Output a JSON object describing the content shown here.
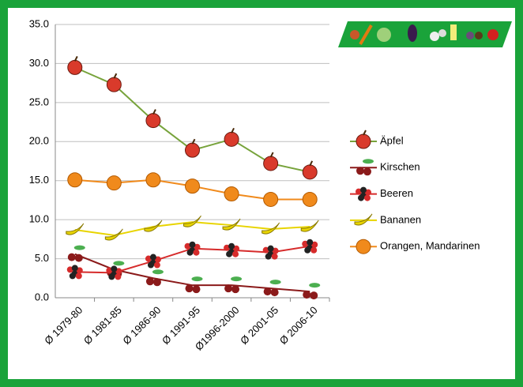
{
  "chart_data": {
    "type": "line",
    "categories": [
      "Ø 1979-80",
      "Ø 1981-85",
      "Ø 1986-90",
      "Ø 1991-95",
      "Ø1996-2000",
      "Ø 2001-05",
      "Ø 2006-10"
    ],
    "series": [
      {
        "name": "Äpfel",
        "color": "#77a33b",
        "values": [
          29.5,
          27.3,
          22.7,
          18.9,
          20.3,
          17.2,
          16.1
        ]
      },
      {
        "name": "Kirschen",
        "color": "#8b1a1a",
        "values": [
          5.6,
          3.6,
          2.5,
          1.6,
          1.6,
          1.2,
          0.8
        ]
      },
      {
        "name": "Beeren",
        "color": "#d62b2b",
        "values": [
          3.3,
          3.2,
          4.7,
          6.3,
          6.1,
          5.8,
          6.6
        ]
      },
      {
        "name": "Bananen",
        "color": "#e8d400",
        "values": [
          8.7,
          8.0,
          9.1,
          9.7,
          9.3,
          8.8,
          9.1
        ]
      },
      {
        "name": "Orangen, Mandarinen",
        "color": "#f08a1c",
        "values": [
          15.1,
          14.7,
          15.1,
          14.3,
          13.3,
          12.6,
          12.6
        ]
      }
    ],
    "ylim": [
      0,
      35
    ],
    "yticks": [
      {
        "value": 0,
        "label": "0.0"
      },
      {
        "value": 5,
        "label": "5.0"
      },
      {
        "value": 10,
        "label": "10.0"
      },
      {
        "value": 15,
        "label": "15.0"
      },
      {
        "value": 20,
        "label": "20.0"
      },
      {
        "value": 25,
        "label": "25.0"
      },
      {
        "value": 30,
        "label": "30.0"
      },
      {
        "value": 35,
        "label": "35.0"
      }
    ],
    "grid": true,
    "legend": "right"
  }
}
